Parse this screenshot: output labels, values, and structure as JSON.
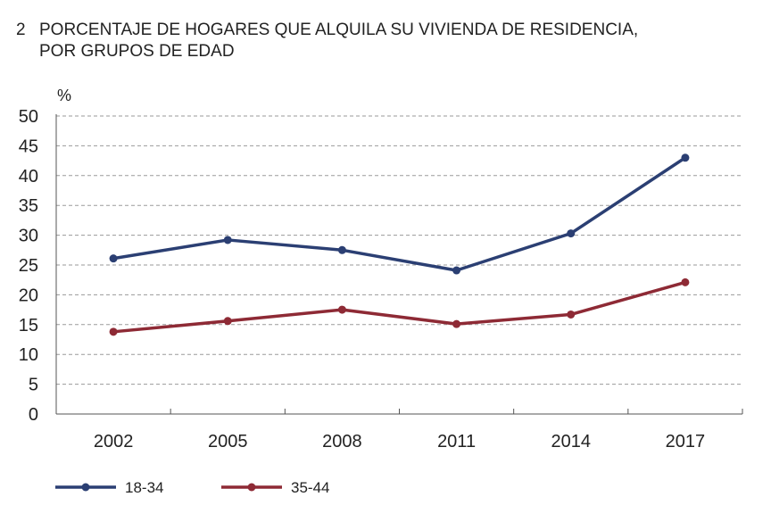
{
  "chart_data": {
    "type": "line",
    "number": "2",
    "title_line1": "PORCENTAJE DE HOGARES QUE ALQUILA SU VIVIENDA DE RESIDENCIA,",
    "title_line2": "POR GRUPOS DE EDAD",
    "yunit": "%",
    "categories": [
      "2002",
      "2005",
      "2008",
      "2011",
      "2014",
      "2017"
    ],
    "ylim": [
      0,
      50
    ],
    "yticks": [
      0,
      5,
      10,
      15,
      20,
      25,
      30,
      35,
      40,
      45,
      50
    ],
    "grid": true,
    "legend_position": "bottom-left",
    "series": [
      {
        "name": "18-34",
        "color": "#2b3f73",
        "values": [
          26.1,
          29.2,
          27.5,
          24.1,
          30.3,
          43.0
        ]
      },
      {
        "name": "35-44",
        "color": "#8e2a35",
        "values": [
          13.8,
          15.6,
          17.5,
          15.1,
          16.7,
          22.1
        ]
      }
    ]
  }
}
